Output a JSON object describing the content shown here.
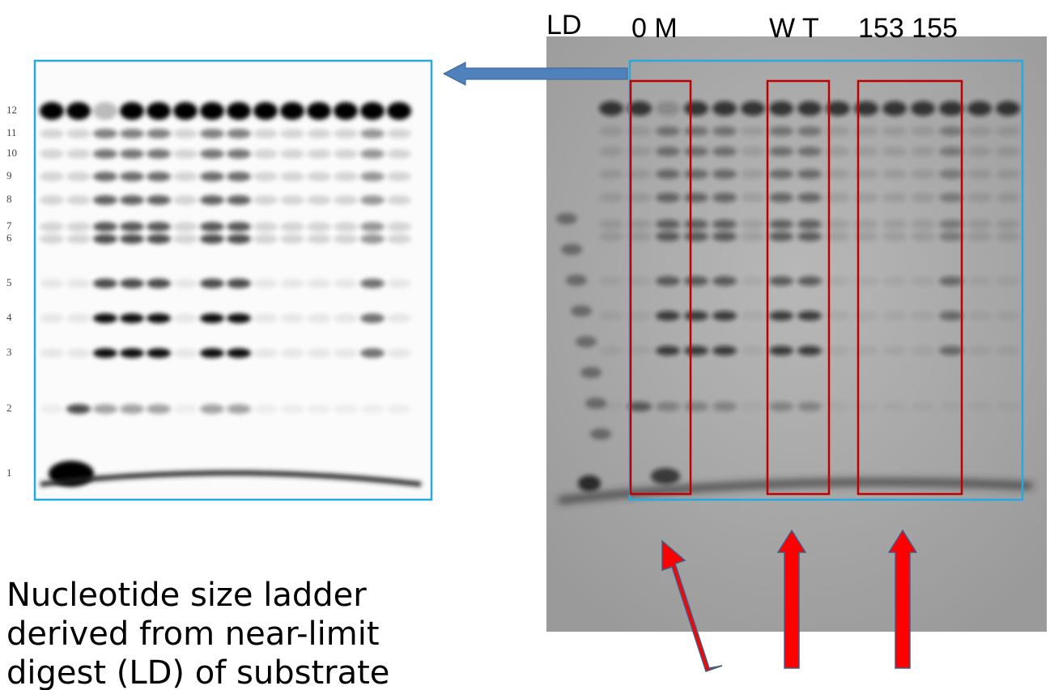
{
  "lane_labels": [
    "LD",
    "0 M",
    "W T",
    "153 155"
  ],
  "ladder": [
    12,
    11,
    10,
    9,
    8,
    7,
    6,
    5,
    4,
    3,
    2,
    1
  ],
  "caption": [
    "Nucleotide size ladder",
    "derived from near-limit",
    "digest (LD) of substrate"
  ]
}
